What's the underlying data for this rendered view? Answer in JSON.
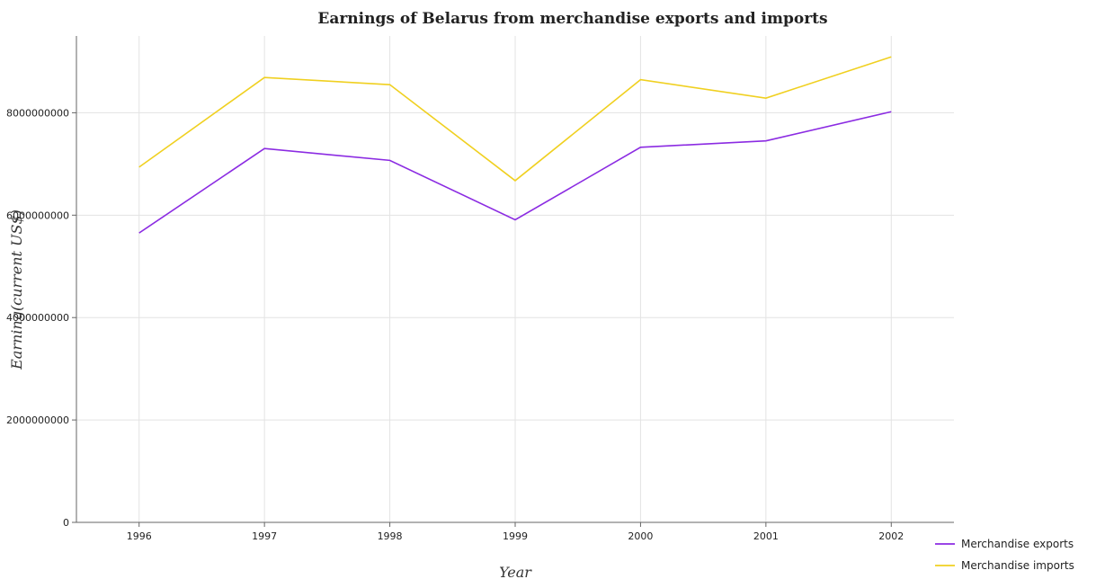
{
  "chart_data": {
    "type": "line",
    "title": "Earnings of Belarus from merchandise exports and imports",
    "xlabel": "Year",
    "ylabel": "Earning(current US$)",
    "categories": [
      "1996",
      "1997",
      "1998",
      "1999",
      "2000",
      "2001",
      "2002"
    ],
    "series": [
      {
        "name": "Merchandise exports",
        "color": "#8b2be2",
        "values": [
          5652000000,
          7301000000,
          7070000000,
          5909000000,
          7326000000,
          7451000000,
          8021000000
        ]
      },
      {
        "name": "Merchandise imports",
        "color": "#f0d020",
        "values": [
          6939000000,
          8689000000,
          8549000000,
          6674000000,
          8646000000,
          8286000000,
          9092000000
        ]
      }
    ],
    "ylim": [
      0,
      9500000000
    ],
    "yticks": [
      0,
      2000000000,
      4000000000,
      6000000000,
      8000000000
    ],
    "ytick_labels": [
      "0",
      "2000000000",
      "4000000000",
      "6000000000",
      "8000000000"
    ],
    "grid": true,
    "legend_position": "bottom-right"
  }
}
